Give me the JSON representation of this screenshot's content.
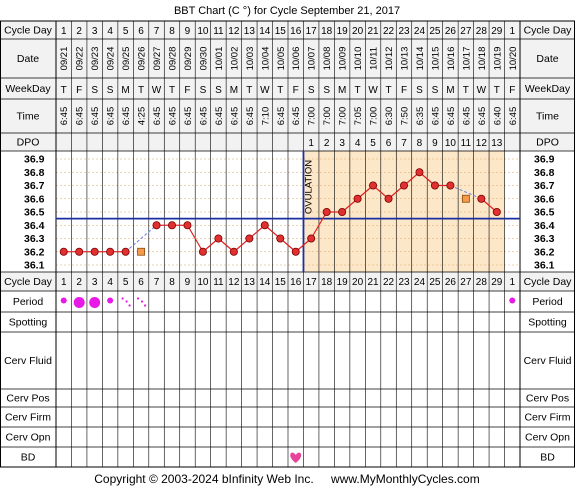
{
  "title": "BBT Chart (C °) for Cycle September 21, 2017",
  "footer": {
    "copyright": "Copyright © 2003-2024 bInfinity Web Inc.",
    "site": "www.MyMonthlyCycles.com"
  },
  "row_labels": {
    "cycle_day": "Cycle Day",
    "date": "Date",
    "weekday": "WeekDay",
    "time": "Time",
    "dpo": "DPO",
    "period": "Period",
    "spotting": "Spotting",
    "cerv_fluid": "Cerv Fluid",
    "cerv_pos": "Cerv Pos",
    "cerv_firm": "Cerv Firm",
    "cerv_opn": "Cerv Opn",
    "bd": "BD"
  },
  "days": [
    1,
    2,
    3,
    4,
    5,
    6,
    7,
    8,
    9,
    10,
    11,
    12,
    13,
    14,
    15,
    16,
    17,
    18,
    19,
    20,
    21,
    22,
    23,
    24,
    25,
    26,
    27,
    28,
    29,
    1
  ],
  "dates": [
    "09/21",
    "09/22",
    "09/23",
    "09/24",
    "09/25",
    "09/26",
    "09/27",
    "09/28",
    "09/29",
    "09/30",
    "10/01",
    "10/02",
    "10/03",
    "10/04",
    "10/05",
    "10/06",
    "10/07",
    "10/08",
    "10/09",
    "10/10",
    "10/11",
    "10/12",
    "10/13",
    "10/14",
    "10/15",
    "10/16",
    "10/17",
    "10/18",
    "10/19",
    "10/20"
  ],
  "weekdays": [
    "T",
    "F",
    "S",
    "S",
    "M",
    "T",
    "W",
    "T",
    "F",
    "S",
    "S",
    "M",
    "T",
    "W",
    "T",
    "F",
    "S",
    "S",
    "M",
    "T",
    "W",
    "T",
    "F",
    "S",
    "S",
    "M",
    "T",
    "W",
    "T",
    "F"
  ],
  "times": [
    "6:45",
    "6:45",
    "6:45",
    "6:45",
    "6:45",
    "4:25",
    "6:45",
    "6:45",
    "6:45",
    "6:45",
    "6:45",
    "6:45",
    "6:45",
    "7:10",
    "6:45",
    "6:45",
    "7:00",
    "7:00",
    "7:00",
    "7:05",
    "7:00",
    "6:30",
    "7:50",
    "6:35",
    "6:45",
    "6:45",
    "6:45",
    "6:45",
    "6:40",
    "6:45"
  ],
  "dpo": [
    "",
    "",
    "",
    "",
    "",
    "",
    "",
    "",
    "",
    "",
    "",
    "",
    "",
    "",
    "",
    "",
    "1",
    "2",
    "3",
    "4",
    "5",
    "6",
    "7",
    "8",
    "9",
    "10",
    "11",
    "12",
    "13",
    ""
  ],
  "ovulation_label": "OVULATION",
  "chart_data": {
    "type": "line",
    "x": [
      1,
      2,
      3,
      4,
      5,
      6,
      7,
      8,
      9,
      10,
      11,
      12,
      13,
      14,
      15,
      16,
      17,
      18,
      19,
      20,
      21,
      22,
      23,
      24,
      25,
      26,
      27,
      28,
      29
    ],
    "temps": [
      36.2,
      36.2,
      36.2,
      36.2,
      36.2,
      36.2,
      36.4,
      36.4,
      36.4,
      36.2,
      36.3,
      36.2,
      36.3,
      36.4,
      36.3,
      36.2,
      36.3,
      36.5,
      36.5,
      36.6,
      36.7,
      36.6,
      36.7,
      36.8,
      36.7,
      36.7,
      36.6,
      36.6,
      36.5
    ],
    "discarded_days": [
      6,
      27
    ],
    "ylim": [
      36.1,
      36.9
    ],
    "yticks": [
      "36.9",
      "36.8",
      "36.7",
      "36.6",
      "36.5",
      "36.4",
      "36.3",
      "36.2",
      "36.1"
    ],
    "coverline": 36.45,
    "ovulation_after_day": 16,
    "colors": {
      "line": "#e02020",
      "point_fill": "#e03030",
      "discarded_fill": "#f59a4a",
      "coverline": "#1a2fa0",
      "ovulation": "#1a2fa0",
      "luteal_bg": "#fce7c8",
      "grid": "#e0a86a",
      "dashed": "#6b7fd8"
    }
  },
  "period": [
    {
      "day": 1,
      "size": "small"
    },
    {
      "day": 2,
      "size": "large"
    },
    {
      "day": 3,
      "size": "large"
    },
    {
      "day": 4,
      "size": "small"
    },
    {
      "day": 5,
      "size": "spotting"
    },
    {
      "day": 6,
      "size": "spotting"
    },
    {
      "day": 30,
      "size": "small"
    }
  ],
  "bd_days": [
    16
  ],
  "colors": {
    "period": "#e619e6",
    "bd": "#e8449a",
    "header_bg": "#f2f2f2",
    "border": "#000000"
  }
}
